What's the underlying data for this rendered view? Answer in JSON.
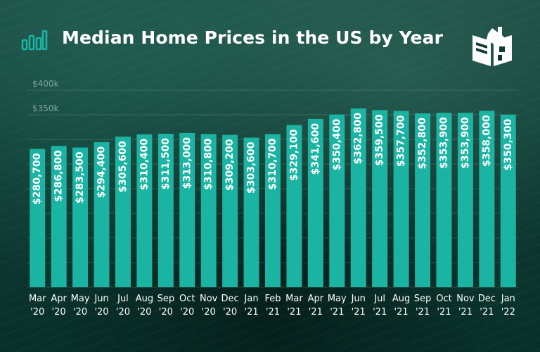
{
  "header": {
    "title": "Median Home Prices in the US by Year",
    "chart_icon": "bar-chart-icon",
    "logo_icon": "book-house-logo-icon"
  },
  "colors": {
    "bar": "#1bb3a2",
    "background": "#0e3a33",
    "text": "#ffffff",
    "tick_label": "#7fa69d"
  },
  "chart_data": {
    "type": "bar",
    "title": "Median Home Prices in the US by Year",
    "xlabel": "",
    "ylabel": "",
    "ylim": [
      0,
      400000
    ],
    "y_tick_values": [
      350000,
      400000
    ],
    "y_tick_labels": [
      "$350k",
      "$400k"
    ],
    "grid": true,
    "categories": [
      [
        "Mar",
        "'20"
      ],
      [
        "Apr",
        "'20"
      ],
      [
        "May",
        "'20"
      ],
      [
        "Jun",
        "'20"
      ],
      [
        "Jul",
        "'20"
      ],
      [
        "Aug",
        "'20"
      ],
      [
        "Sep",
        "'20"
      ],
      [
        "Oct",
        "'20"
      ],
      [
        "Nov",
        "'20"
      ],
      [
        "Dec",
        "'20"
      ],
      [
        "Jan",
        "'21"
      ],
      [
        "Feb",
        "'21"
      ],
      [
        "Mar",
        "'21"
      ],
      [
        "Apr",
        "'21"
      ],
      [
        "May",
        "'21"
      ],
      [
        "Jun",
        "'21"
      ],
      [
        "Jul",
        "'21"
      ],
      [
        "Aug",
        "'21"
      ],
      [
        "Sep",
        "'21"
      ],
      [
        "Oct",
        "'21"
      ],
      [
        "Nov",
        "'21"
      ],
      [
        "Dec",
        "'21"
      ],
      [
        "Jan",
        "'22"
      ]
    ],
    "values": [
      280700,
      286800,
      283500,
      294400,
      305600,
      310400,
      311500,
      313000,
      310800,
      309200,
      303600,
      310700,
      329100,
      341600,
      350400,
      362800,
      359500,
      357700,
      352800,
      353900,
      353900,
      358000,
      350300
    ],
    "value_labels": [
      "$280,700",
      "$286,800",
      "$283,500",
      "$294,400",
      "$305,600",
      "$310,400",
      "$311,500",
      "$313,000",
      "$310,800",
      "$309,200",
      "$303,600",
      "$310,700",
      "$329,100",
      "$341,600",
      "$350,400",
      "$362,800",
      "$359,500",
      "$357,700",
      "$352,800",
      "$353,900",
      "$353,900",
      "$358,000",
      "$350,300"
    ]
  }
}
